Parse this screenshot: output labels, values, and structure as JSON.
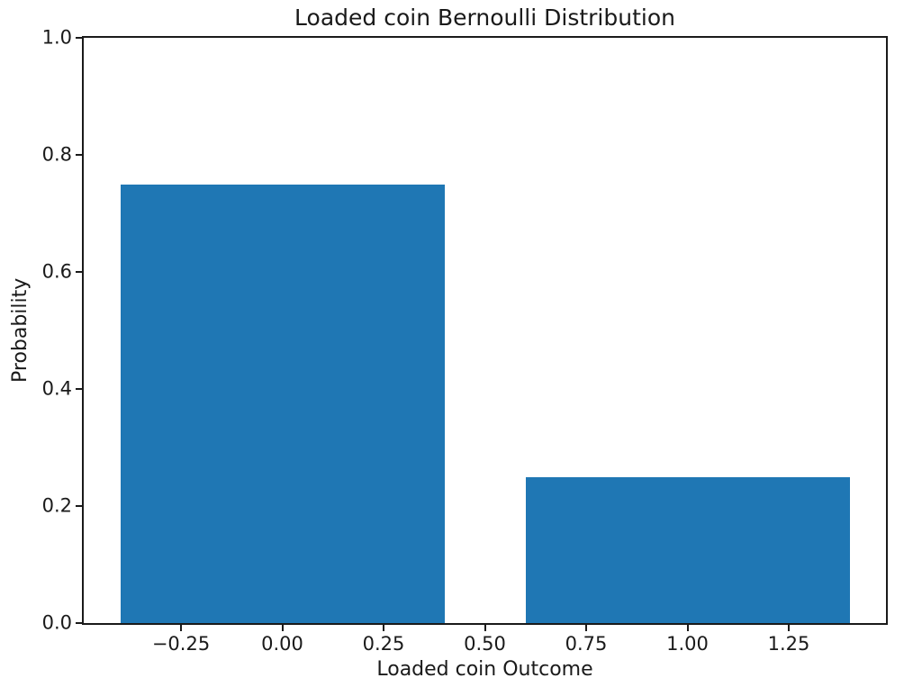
{
  "chart_data": {
    "type": "bar",
    "title": "Loaded coin Bernoulli Distribution",
    "xlabel": "Loaded coin Outcome",
    "ylabel": "Probability",
    "x": [
      0,
      1
    ],
    "values": [
      0.75,
      0.25
    ],
    "bar_width": 0.8,
    "bar_color": "#1f77b4",
    "xlim": [
      -0.49,
      1.49
    ],
    "ylim": [
      0,
      1
    ],
    "xticks": [
      -0.25,
      0,
      0.25,
      0.5,
      0.75,
      1,
      1.25
    ],
    "xtick_labels": [
      "−0.25",
      "0.00",
      "0.25",
      "0.50",
      "0.75",
      "1.00",
      "1.25"
    ],
    "yticks": [
      0,
      0.2,
      0.4,
      0.6,
      0.8,
      1
    ],
    "ytick_labels": [
      "0.0",
      "0.2",
      "0.4",
      "0.6",
      "0.8",
      "1.0"
    ],
    "grid": false,
    "legend": null,
    "background": "#ffffff",
    "axis_color": "#1a1a1a"
  }
}
